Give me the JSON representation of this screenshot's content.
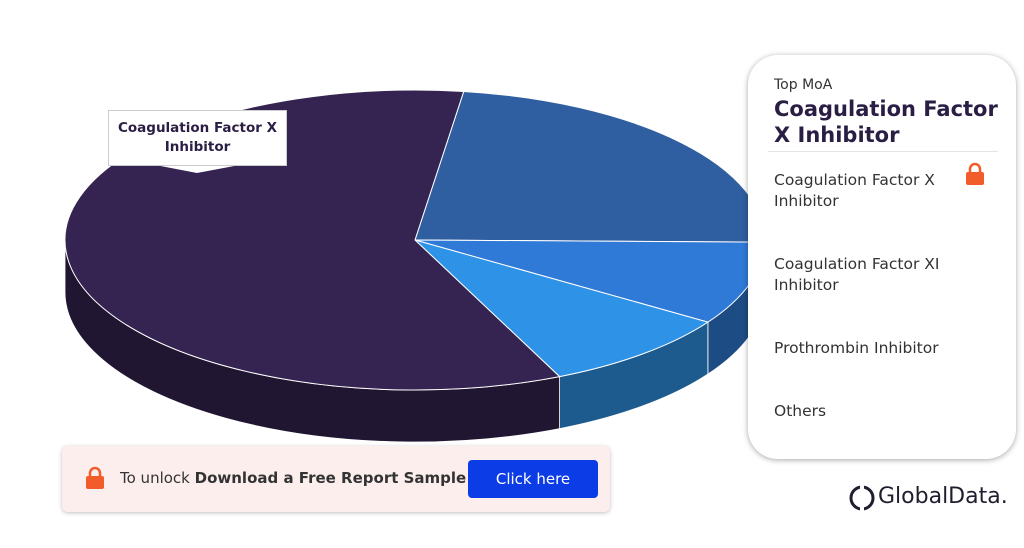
{
  "chart_data": {
    "type": "pie3d",
    "categories": [
      "Coagulation Factor X Inhibitor",
      "Coagulation Factor XI Inhibitor",
      "Prothrombin Inhibitor",
      "Others"
    ],
    "values": [
      59,
      23,
      9,
      9
    ],
    "colors": [
      "#352451",
      "#2f5fa0",
      "#2f7ad6",
      "#2e92e6"
    ],
    "panel_label": "Top MoA"
  },
  "banner": {
    "text": "To unlock",
    "bold": "Download a Free Report Sample",
    "button": "Click here"
  },
  "logo": "GlobalData."
}
